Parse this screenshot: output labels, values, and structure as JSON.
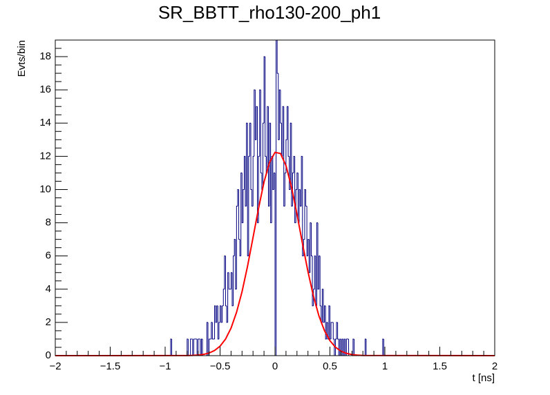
{
  "chart_data": {
    "type": "histogram",
    "title": "SR_BBTT_rho130-200_ph1",
    "x_label": "t [ns]",
    "y_label": "Evts/bin",
    "xlim": [
      -2,
      2
    ],
    "ylim": [
      0,
      19
    ],
    "xticks": [
      {
        "value": -2,
        "label": "−2"
      },
      {
        "value": -1.5,
        "label": "−1.5"
      },
      {
        "value": -1,
        "label": "−1"
      },
      {
        "value": -0.5,
        "label": "−0.5"
      },
      0,
      0.5,
      1,
      1.5,
      2
    ],
    "yticks": [
      0,
      2,
      4,
      6,
      8,
      10,
      12,
      14,
      16,
      18
    ],
    "xminorticks": [
      -1.9,
      -1.8,
      -1.7,
      -1.6,
      -1.4,
      -1.3,
      -1.2,
      -1.1,
      -0.9,
      -0.8,
      -0.7,
      -0.6,
      -0.4,
      -0.3,
      -0.2,
      -0.1,
      0.1,
      0.2,
      0.3,
      0.4,
      0.6,
      0.7,
      0.8,
      0.9,
      1.1,
      1.2,
      1.3,
      1.4,
      1.6,
      1.7,
      1.8,
      1.9
    ],
    "yminorticks": [
      0.5,
      1,
      1.5,
      2.5,
      3,
      3.5,
      4.5,
      5,
      5.5,
      6.5,
      7,
      7.5,
      8.5,
      9,
      9.5,
      10.5,
      11,
      11.5,
      12.5,
      13,
      13.5,
      14.5,
      15,
      15.5,
      16.5,
      17,
      17.5,
      18.5
    ],
    "color": "#000080",
    "bins": [
      -2.0,
      -1.99,
      -1.98,
      -1.97,
      -1.96,
      -1.95,
      -1.94,
      -1.93,
      -1.92,
      -1.91,
      -1.9,
      -1.89,
      -1.88,
      -1.87,
      -1.86,
      -1.85,
      -1.84,
      -1.83,
      -1.82,
      -1.81,
      -1.8,
      -1.79,
      -1.78,
      -1.77,
      -1.76,
      -1.75,
      -1.74,
      -1.73,
      -1.72,
      -1.71,
      -1.7,
      -1.69,
      -1.68,
      -1.67,
      -1.66,
      -1.65,
      -1.64,
      -1.63,
      -1.62,
      -1.61,
      -1.6,
      -1.59,
      -1.58,
      -1.57,
      -1.56,
      -1.55,
      -1.54,
      -1.53,
      -1.52,
      -1.51,
      -1.5,
      -1.49,
      -1.48,
      -1.47,
      -1.46,
      -1.45,
      -1.44,
      -1.43,
      -1.42,
      -1.41,
      -1.4,
      -1.39,
      -1.38,
      -1.37,
      -1.36,
      -1.35,
      -1.34,
      -1.33,
      -1.32,
      -1.31,
      -1.3,
      -1.29,
      -1.28,
      -1.27,
      -1.26,
      -1.25,
      -1.24,
      -1.23,
      -1.22,
      -1.21,
      -1.2,
      -1.19,
      -1.18,
      -1.17,
      -1.16,
      -1.15,
      -1.14,
      -1.13,
      -1.12,
      -1.11,
      -1.1,
      -1.09,
      -1.08,
      -1.07,
      -1.06,
      -1.05,
      -1.04,
      -1.03,
      -1.02,
      -1.01,
      -1.0,
      -0.99,
      -0.98,
      -0.97,
      -0.96,
      -0.95,
      -0.94,
      -0.93,
      -0.92,
      -0.91,
      -0.9,
      -0.89,
      -0.88,
      -0.87,
      -0.86,
      -0.85,
      -0.84,
      -0.83,
      -0.82,
      -0.81,
      -0.8,
      -0.79,
      -0.78,
      -0.77,
      -0.76,
      -0.75,
      -0.74,
      -0.73,
      -0.72,
      -0.71,
      -0.7,
      -0.69,
      -0.68,
      -0.67,
      -0.66,
      -0.65,
      -0.64,
      -0.63,
      -0.62,
      -0.61,
      -0.6,
      -0.59,
      -0.58,
      -0.57,
      -0.56,
      -0.55,
      -0.54,
      -0.53,
      -0.52,
      -0.51,
      -0.5,
      -0.49,
      -0.48,
      -0.47,
      -0.46,
      -0.45,
      -0.44,
      -0.43,
      -0.42,
      -0.41,
      -0.4,
      -0.39,
      -0.38,
      -0.37,
      -0.36,
      -0.35,
      -0.34,
      -0.33,
      -0.32,
      -0.31,
      -0.3,
      -0.29,
      -0.28,
      -0.27,
      -0.26,
      -0.25,
      -0.24,
      -0.23,
      -0.22,
      -0.21,
      -0.2,
      -0.19,
      -0.18,
      -0.17,
      -0.16,
      -0.15,
      -0.14,
      -0.13,
      -0.12,
      -0.11,
      -0.1,
      -0.09,
      -0.08,
      -0.07,
      -0.06,
      -0.05,
      -0.04,
      -0.03,
      -0.02,
      -0.01,
      0.0,
      0.01,
      0.02,
      0.03,
      0.04,
      0.05,
      0.06,
      0.07,
      0.08,
      0.09,
      0.1,
      0.11,
      0.12,
      0.13,
      0.14,
      0.15,
      0.16,
      0.17,
      0.18,
      0.19,
      0.2,
      0.21,
      0.22,
      0.23,
      0.24,
      0.25,
      0.26,
      0.27,
      0.28,
      0.29,
      0.3,
      0.31,
      0.32,
      0.33,
      0.34,
      0.35,
      0.36,
      0.37,
      0.38,
      0.39,
      0.4,
      0.41,
      0.42,
      0.43,
      0.44,
      0.45,
      0.46,
      0.47,
      0.48,
      0.49,
      0.5,
      0.51,
      0.52,
      0.53,
      0.54,
      0.55,
      0.56,
      0.57,
      0.58,
      0.59,
      0.6,
      0.61,
      0.62,
      0.63,
      0.64,
      0.65,
      0.66,
      0.67,
      0.68,
      0.69,
      0.7,
      0.71,
      0.72,
      0.73,
      0.74,
      0.75,
      0.76,
      0.77,
      0.78,
      0.79,
      0.8,
      0.81,
      0.82,
      0.83,
      0.84,
      0.85,
      0.86,
      0.87,
      0.88,
      0.89,
      0.9,
      0.91,
      0.92,
      0.93,
      0.94,
      0.95,
      0.96,
      0.97,
      0.98,
      0.99,
      1.0,
      1.01,
      1.02,
      1.03,
      1.04,
      1.05,
      1.06,
      1.07,
      1.08,
      1.09,
      1.1,
      1.11,
      1.12,
      1.13,
      1.14,
      1.15,
      1.16,
      1.17,
      1.18,
      1.19,
      1.2,
      1.21,
      1.22,
      1.23,
      1.24,
      1.25,
      1.26,
      1.27,
      1.28,
      1.29,
      1.3,
      1.31,
      1.32,
      1.33,
      1.34,
      1.35,
      1.36,
      1.37,
      1.38,
      1.39,
      1.4,
      1.41,
      1.42,
      1.43,
      1.44,
      1.45,
      1.46,
      1.47,
      1.48,
      1.49,
      1.5,
      1.51,
      1.52,
      1.53,
      1.54,
      1.55,
      1.56,
      1.57,
      1.58,
      1.59,
      1.6,
      1.61,
      1.62,
      1.63,
      1.64,
      1.65,
      1.66,
      1.67,
      1.68,
      1.69,
      1.7,
      1.71,
      1.72,
      1.73,
      1.74,
      1.75,
      1.76,
      1.77,
      1.78,
      1.79,
      1.8,
      1.81,
      1.82,
      1.83,
      1.84,
      1.85,
      1.86,
      1.87,
      1.88,
      1.89,
      1.9,
      1.91,
      1.92,
      1.93,
      1.94,
      1.95,
      1.96,
      1.97,
      1.98,
      1.99,
      2.0
    ],
    "values": [
      0,
      0,
      0,
      0,
      0,
      0,
      0,
      0,
      0,
      0,
      0,
      0,
      0,
      0,
      0,
      0,
      0,
      0,
      0,
      0,
      0,
      0,
      0,
      0,
      0,
      0,
      0,
      0,
      0,
      0,
      0,
      0,
      0,
      0,
      0,
      0,
      0,
      0,
      0,
      0,
      0,
      0,
      0,
      0,
      0,
      0,
      0,
      0,
      0,
      0,
      0,
      0,
      0,
      0,
      0,
      0,
      0,
      0,
      0,
      0,
      0,
      0,
      0,
      0,
      0,
      0,
      0,
      0,
      0,
      0,
      0,
      0,
      0,
      0,
      0,
      0,
      0,
      0,
      0,
      0,
      0,
      0,
      0,
      0,
      0,
      0,
      0,
      0,
      0,
      0,
      0,
      0,
      0,
      0,
      0,
      0,
      0,
      0,
      0,
      0,
      0,
      0,
      0,
      0,
      0,
      1,
      0,
      0,
      0,
      0,
      0,
      0,
      0,
      0,
      0,
      0,
      0,
      0,
      0,
      0,
      1,
      0,
      0,
      1,
      1,
      0,
      1,
      1,
      1,
      0,
      1,
      1,
      0,
      1,
      0,
      0,
      0,
      0,
      2,
      0,
      1,
      1,
      2,
      1,
      1,
      3,
      2,
      3,
      1,
      2,
      3,
      2,
      3,
      4,
      6,
      3,
      2,
      5,
      4,
      4,
      5,
      3,
      6,
      7,
      4,
      9,
      10,
      7,
      6,
      11,
      8,
      10,
      12,
      9,
      14,
      6,
      12,
      14,
      10,
      9,
      12,
      16,
      13,
      15,
      8,
      12,
      16,
      11,
      10,
      14,
      18,
      12,
      11,
      15,
      9,
      14,
      8,
      12,
      10,
      11,
      0,
      19,
      17,
      13,
      16,
      14,
      12,
      15,
      9,
      11,
      13,
      15,
      12,
      10,
      14,
      9,
      11,
      12,
      8,
      10,
      11,
      8,
      10,
      9,
      12,
      6,
      7,
      10,
      9,
      6,
      7,
      5,
      8,
      6,
      3,
      4,
      6,
      3,
      8,
      4,
      6,
      3,
      2,
      4,
      2,
      3,
      1,
      2,
      1,
      3,
      1,
      2,
      2,
      1,
      0,
      1,
      2,
      1,
      0,
      1,
      0,
      1,
      0,
      1,
      0,
      1,
      1,
      0,
      0,
      0,
      0,
      1,
      0,
      0,
      0,
      0,
      0,
      0,
      0,
      0,
      0,
      0,
      1,
      0,
      0,
      0,
      0,
      0,
      0,
      0,
      0,
      0,
      0,
      0,
      0,
      0,
      0,
      0,
      1,
      0,
      0,
      0,
      0,
      0,
      0,
      0,
      0,
      0,
      0,
      0,
      0,
      0,
      0,
      0,
      0,
      0,
      0,
      0,
      0,
      0,
      0,
      0,
      0,
      0,
      0,
      0,
      0,
      0,
      0,
      0,
      0,
      0,
      0,
      0,
      0,
      0,
      0,
      0,
      0,
      0,
      0,
      0,
      0,
      0,
      0,
      0,
      0,
      0,
      0,
      0,
      0,
      0,
      0,
      0,
      0,
      0,
      0,
      0,
      0,
      0,
      0,
      0,
      0,
      0,
      0,
      0,
      0,
      0,
      0,
      0,
      0,
      0,
      0,
      0,
      0,
      0,
      0,
      0,
      0,
      0,
      0,
      0,
      0,
      0,
      0,
      0,
      0,
      0,
      0,
      0,
      0,
      0,
      0,
      0,
      0,
      0,
      0,
      0,
      0,
      0
    ],
    "fit": {
      "color": "#ff0000",
      "x": [
        -2,
        -0.8,
        -0.75,
        -0.7,
        -0.65,
        -0.6,
        -0.55,
        -0.5,
        -0.45,
        -0.4,
        -0.35,
        -0.3,
        -0.25,
        -0.2,
        -0.15,
        -0.1,
        -0.05,
        0,
        0.05,
        0.1,
        0.15,
        0.2,
        0.25,
        0.3,
        0.35,
        0.4,
        0.45,
        0.5,
        0.55,
        0.6,
        0.65,
        0.7,
        0.75,
        0.8,
        2
      ],
      "values": [
        0,
        0.006,
        0.015,
        0.034,
        0.076,
        0.157,
        0.31,
        0.57,
        1.0,
        1.66,
        2.61,
        3.85,
        5.38,
        7.11,
        8.86,
        10.45,
        11.63,
        12.24,
        12.17,
        11.44,
        10.15,
        8.52,
        6.75,
        5.06,
        3.58,
        2.39,
        1.51,
        0.9,
        0.51,
        0.27,
        0.14,
        0.065,
        0.029,
        0.012,
        0
      ]
    }
  }
}
